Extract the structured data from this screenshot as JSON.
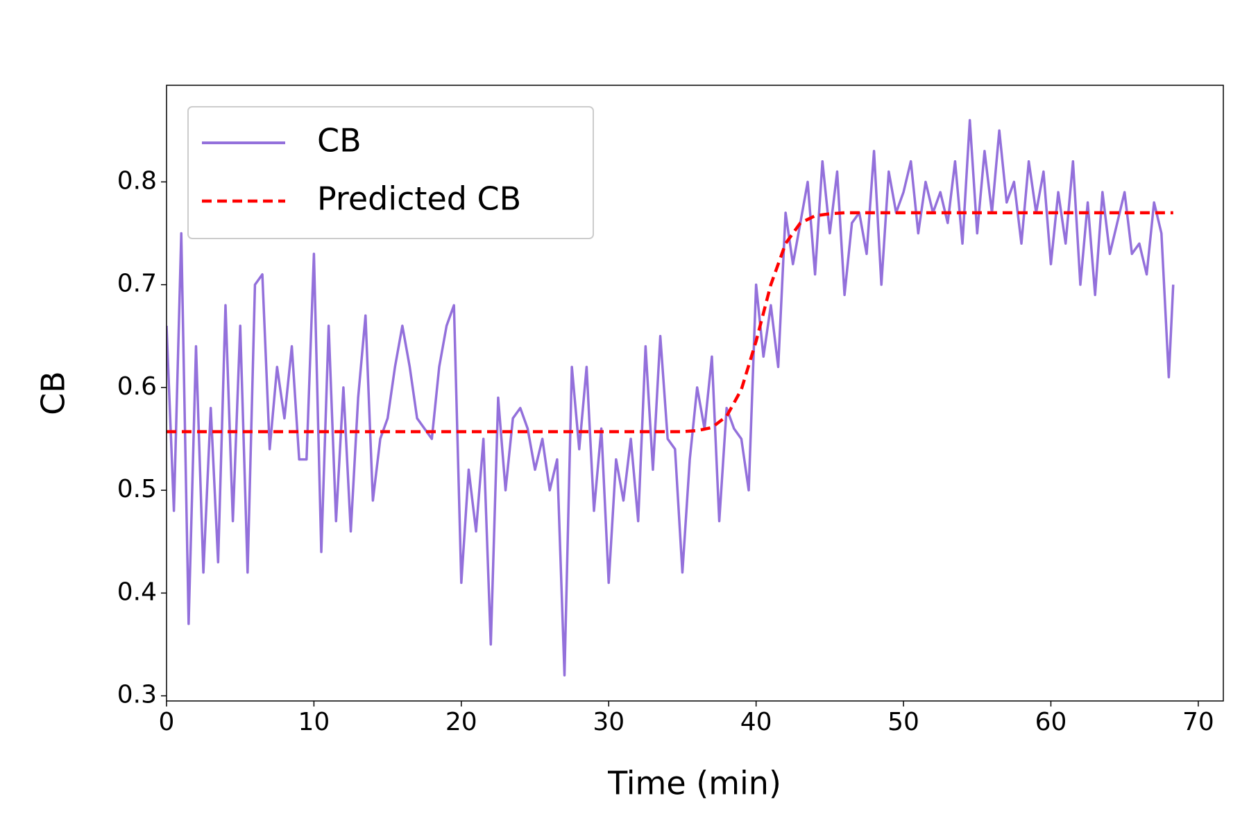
{
  "chart_data": {
    "type": "line",
    "xlabel": "Time (min)",
    "ylabel": "CB",
    "xlim": [
      0,
      71.7
    ],
    "xticks": [
      0,
      10,
      20,
      30,
      40,
      50,
      60,
      70
    ],
    "ylim": [
      0.295,
      0.894
    ],
    "yticks": [
      0.3,
      0.4,
      0.5,
      0.6,
      0.7,
      0.8
    ],
    "legend": "upper left",
    "series": [
      {
        "name": "CB",
        "color": "#9370db",
        "style": "solid",
        "x": [
          0,
          0.5,
          1,
          1.5,
          2,
          2.5,
          3,
          3.5,
          4,
          4.5,
          5,
          5.5,
          6,
          6.5,
          7,
          7.5,
          8,
          8.5,
          9,
          9.5,
          10,
          10.5,
          11,
          11.5,
          12,
          12.5,
          13,
          13.5,
          14,
          14.5,
          15,
          15.5,
          16,
          16.5,
          17,
          17.5,
          18,
          18.5,
          19,
          19.5,
          20,
          20.5,
          21,
          21.5,
          22,
          22.5,
          23,
          23.5,
          24,
          24.5,
          25,
          25.5,
          26,
          26.5,
          27,
          27.5,
          28,
          28.5,
          29,
          29.5,
          30,
          30.5,
          31,
          31.5,
          32,
          32.5,
          33,
          33.5,
          34,
          34.5,
          35,
          35.5,
          36,
          36.5,
          37,
          37.5,
          38,
          38.5,
          39,
          39.5,
          40,
          40.5,
          41,
          41.5,
          42,
          42.5,
          43,
          43.5,
          44,
          44.5,
          45,
          45.5,
          46,
          46.5,
          47,
          47.5,
          48,
          48.5,
          49,
          49.5,
          50,
          50.5,
          51,
          51.5,
          52,
          52.5,
          53,
          53.5,
          54,
          54.5,
          55,
          55.5,
          56,
          56.5,
          57,
          57.5,
          58,
          58.5,
          59,
          59.5,
          60,
          60.5,
          61,
          61.5,
          62,
          62.5,
          63,
          63.5,
          64,
          64.5,
          65,
          65.5,
          66,
          66.5,
          67,
          67.5,
          68,
          68.3
        ],
        "values": [
          0.66,
          0.48,
          0.75,
          0.37,
          0.64,
          0.42,
          0.58,
          0.43,
          0.68,
          0.47,
          0.66,
          0.42,
          0.7,
          0.71,
          0.54,
          0.62,
          0.57,
          0.64,
          0.53,
          0.53,
          0.73,
          0.44,
          0.66,
          0.47,
          0.6,
          0.46,
          0.59,
          0.67,
          0.49,
          0.55,
          0.57,
          0.62,
          0.66,
          0.62,
          0.57,
          0.56,
          0.55,
          0.62,
          0.66,
          0.68,
          0.41,
          0.52,
          0.46,
          0.55,
          0.35,
          0.59,
          0.5,
          0.57,
          0.58,
          0.56,
          0.52,
          0.55,
          0.5,
          0.53,
          0.32,
          0.62,
          0.54,
          0.62,
          0.48,
          0.56,
          0.41,
          0.53,
          0.49,
          0.55,
          0.47,
          0.64,
          0.52,
          0.65,
          0.55,
          0.54,
          0.42,
          0.53,
          0.6,
          0.56,
          0.63,
          0.47,
          0.58,
          0.56,
          0.55,
          0.5,
          0.7,
          0.63,
          0.68,
          0.62,
          0.77,
          0.72,
          0.76,
          0.8,
          0.71,
          0.82,
          0.75,
          0.81,
          0.69,
          0.76,
          0.77,
          0.73,
          0.83,
          0.7,
          0.81,
          0.77,
          0.79,
          0.82,
          0.75,
          0.8,
          0.77,
          0.79,
          0.76,
          0.82,
          0.74,
          0.86,
          0.75,
          0.83,
          0.77,
          0.85,
          0.78,
          0.8,
          0.74,
          0.82,
          0.77,
          0.81,
          0.72,
          0.79,
          0.74,
          0.82,
          0.7,
          0.78,
          0.69,
          0.79,
          0.73,
          0.76,
          0.79,
          0.73,
          0.74,
          0.71,
          0.78,
          0.75,
          0.61,
          0.7
        ]
      },
      {
        "name": "Predicted CB",
        "color": "#ff0000",
        "style": "dashed",
        "x": [
          0,
          5,
          10,
          15,
          20,
          25,
          30,
          35,
          36,
          37,
          38,
          39,
          40,
          41,
          42,
          43,
          44,
          45,
          46,
          50,
          55,
          60,
          65,
          68.3
        ],
        "values": [
          0.557,
          0.557,
          0.557,
          0.557,
          0.557,
          0.557,
          0.557,
          0.557,
          0.558,
          0.561,
          0.572,
          0.598,
          0.645,
          0.7,
          0.74,
          0.76,
          0.767,
          0.769,
          0.77,
          0.77,
          0.77,
          0.77,
          0.77,
          0.77
        ]
      }
    ]
  }
}
